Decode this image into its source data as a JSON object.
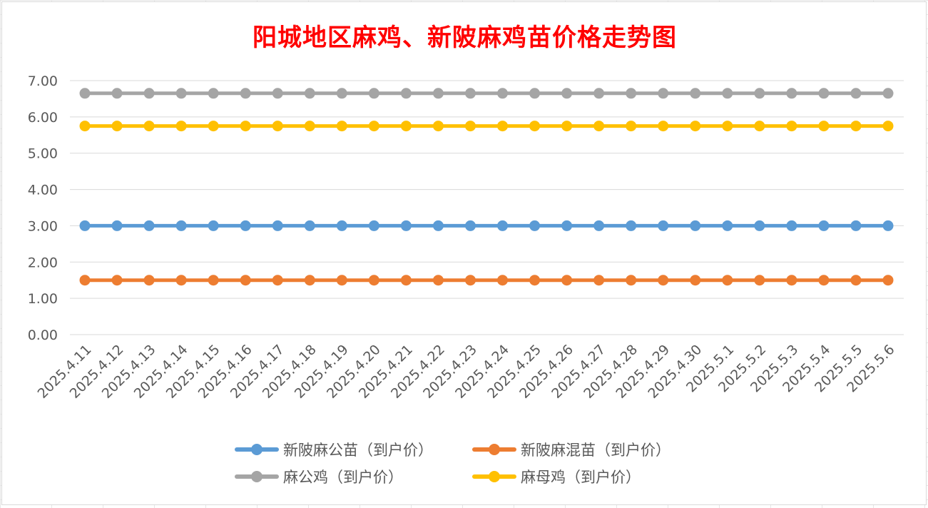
{
  "chart_data": {
    "type": "line",
    "title": "阳城地区麻鸡、新陂麻鸡苗价格走势图",
    "xlabel": "",
    "ylabel": "",
    "ylim": [
      0,
      7
    ],
    "yticks": [
      "0.00",
      "1.00",
      "2.00",
      "3.00",
      "4.00",
      "5.00",
      "6.00",
      "7.00"
    ],
    "grid": true,
    "legend_position": "bottom",
    "categories": [
      "2025.4.11",
      "2025.4.12",
      "2025.4.13",
      "2025.4.14",
      "2025.4.15",
      "2025.4.16",
      "2025.4.17",
      "2025.4.18",
      "2025.4.19",
      "2025.4.20",
      "2025.4.21",
      "2025.4.22",
      "2025.4.23",
      "2025.4.24",
      "2025.4.25",
      "2025.4.26",
      "2025.4.27",
      "2025.4.28",
      "2025.4.29",
      "2025.4.30",
      "2025.5.1",
      "2025.5.2",
      "2025.5.3",
      "2025.5.4",
      "2025.5.5",
      "2025.5.6"
    ],
    "series": [
      {
        "name": "新陂麻公苗（到户价）",
        "color": "#5b9bd5",
        "values": [
          3,
          3,
          3,
          3,
          3,
          3,
          3,
          3,
          3,
          3,
          3,
          3,
          3,
          3,
          3,
          3,
          3,
          3,
          3,
          3,
          3,
          3,
          3,
          3,
          3,
          3
        ]
      },
      {
        "name": "新陂麻混苗（到户价）",
        "color": "#ed7d31",
        "values": [
          1.5,
          1.5,
          1.5,
          1.5,
          1.5,
          1.5,
          1.5,
          1.5,
          1.5,
          1.5,
          1.5,
          1.5,
          1.5,
          1.5,
          1.5,
          1.5,
          1.5,
          1.5,
          1.5,
          1.5,
          1.5,
          1.5,
          1.5,
          1.5,
          1.5,
          1.5
        ]
      },
      {
        "name": "麻公鸡（到户价）",
        "color": "#a5a5a5",
        "values": [
          6.65,
          6.65,
          6.65,
          6.65,
          6.65,
          6.65,
          6.65,
          6.65,
          6.65,
          6.65,
          6.65,
          6.65,
          6.65,
          6.65,
          6.65,
          6.65,
          6.65,
          6.65,
          6.65,
          6.65,
          6.65,
          6.65,
          6.65,
          6.65,
          6.65,
          6.65
        ]
      },
      {
        "name": "麻母鸡（到户价）",
        "color": "#ffc000",
        "values": [
          5.75,
          5.75,
          5.75,
          5.75,
          5.75,
          5.75,
          5.75,
          5.75,
          5.75,
          5.75,
          5.75,
          5.75,
          5.75,
          5.75,
          5.75,
          5.75,
          5.75,
          5.75,
          5.75,
          5.75,
          5.75,
          5.75,
          5.75,
          5.75,
          5.75,
          5.75
        ]
      }
    ]
  }
}
